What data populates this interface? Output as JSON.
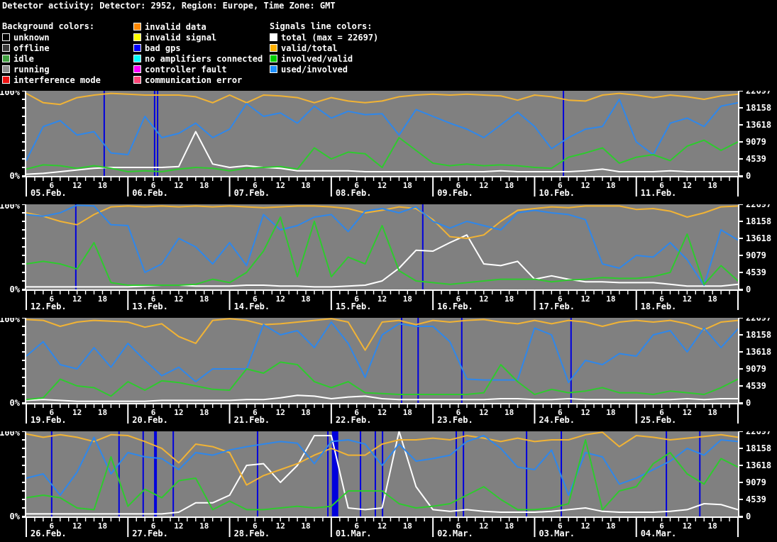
{
  "title": "Detector activity; Detector: 2952, Region: Europe, Time Zone: GMT",
  "legend": {
    "background_title": "Background colors:",
    "signals_title": "Signals line colors:",
    "background_items": [
      {
        "label": "unknown",
        "color": "#000000"
      },
      {
        "label": "offline",
        "color": "#3c3c3c"
      },
      {
        "label": "idle",
        "color": "#40a040"
      },
      {
        "label": "running",
        "color": "#8f8f8f"
      },
      {
        "label": "interference mode",
        "color": "#ee1111"
      }
    ],
    "status_items": [
      {
        "label": "invalid data",
        "color": "#ff8800"
      },
      {
        "label": "invalid signal",
        "color": "#ffff00"
      },
      {
        "label": "bad gps",
        "color": "#0000ff"
      },
      {
        "label": "no amplifiers connected",
        "color": "#00ffff"
      },
      {
        "label": "controller fault",
        "color": "#ff00ff"
      },
      {
        "label": "communication error",
        "color": "#ff4477"
      }
    ],
    "signal_items": [
      {
        "label": "total (max = 22697)",
        "color": "#ffffff"
      },
      {
        "label": "valid/total",
        "color": "#ffb000"
      },
      {
        "label": "involved/valid",
        "color": "#00cc00"
      },
      {
        "label": "used/involved",
        "color": "#1e90ff"
      }
    ]
  },
  "chart_data": {
    "type": "line",
    "y_max_total": 22697,
    "sample_interval_hours": 4,
    "hours_per_panel": 168,
    "y_left_labels": [
      "100%",
      "0%"
    ],
    "y_right_labels": [
      "22697",
      "18158",
      "13618",
      "9079",
      "4539",
      "0"
    ],
    "x_hour_labels": [
      "6",
      "12",
      "18"
    ],
    "series_order": [
      "total",
      "valid_total",
      "used_involved",
      "involved_valid"
    ],
    "colors": {
      "plot_bg": "#808080",
      "axis": "#ffffff",
      "event": "#0000dd",
      "total": "#ffffff",
      "valid_total": "#f1b335",
      "involved_valid": "#2eca2e",
      "used_involved": "#2f87ea"
    },
    "panels": [
      {
        "dates": [
          "05.Feb.",
          "06.Feb.",
          "07.Feb.",
          "08.Feb.",
          "09.Feb.",
          "10.Feb.",
          "11.Feb."
        ],
        "events": [
          [
            18.4,
            2
          ],
          [
            30.3,
            2
          ],
          [
            31.0,
            2
          ],
          [
            126.8,
            2
          ]
        ],
        "series": {
          "valid_total": [
            97,
            86,
            84,
            92,
            95,
            97,
            96,
            95,
            95,
            95,
            93,
            86,
            95,
            86,
            95,
            94,
            92,
            86,
            92,
            88,
            86,
            88,
            93,
            95,
            96,
            95,
            96,
            95,
            94,
            89,
            95,
            93,
            89,
            88,
            95,
            97,
            95,
            92,
            95,
            93,
            90,
            94,
            96
          ],
          "used_involved": [
            18,
            58,
            65,
            48,
            52,
            27,
            25,
            70,
            45,
            50,
            62,
            45,
            55,
            85,
            70,
            74,
            62,
            82,
            68,
            76,
            72,
            73,
            48,
            78,
            70,
            62,
            55,
            45,
            60,
            75,
            58,
            32,
            45,
            55,
            58,
            90,
            40,
            25,
            62,
            68,
            58,
            82,
            86
          ],
          "involved_valid": [
            8,
            13,
            12,
            9,
            12,
            9,
            5,
            6,
            5,
            8,
            10,
            9,
            6,
            9,
            10,
            11,
            8,
            33,
            20,
            28,
            26,
            10,
            45,
            30,
            15,
            12,
            14,
            12,
            13,
            12,
            10,
            9,
            22,
            27,
            33,
            15,
            22,
            25,
            18,
            35,
            42,
            30,
            40
          ],
          "total": [
            2,
            3,
            5,
            7,
            9,
            10,
            10,
            10,
            10,
            11,
            52,
            14,
            10,
            12,
            10,
            9,
            6,
            6,
            6,
            6,
            5,
            5,
            5,
            5,
            5,
            5,
            5,
            5,
            6,
            5,
            5,
            5,
            5,
            6,
            8,
            5,
            5,
            5,
            6,
            5,
            5,
            5,
            5
          ]
        }
      },
      {
        "dates": [
          "12.Feb.",
          "13.Feb.",
          "14.Feb.",
          "15.Feb.",
          "16.Feb.",
          "17.Feb.",
          "18.Feb."
        ],
        "events": [
          [
            11.7,
            2
          ],
          [
            93.6,
            2
          ]
        ],
        "series": {
          "valid_total": [
            90,
            86,
            80,
            76,
            88,
            97,
            98,
            97,
            98,
            97,
            98,
            97,
            98,
            97,
            96,
            97,
            98,
            98,
            97,
            95,
            90,
            93,
            97,
            95,
            82,
            62,
            60,
            64,
            80,
            93,
            95,
            97,
            96,
            98,
            98,
            98,
            94,
            95,
            92,
            85,
            90,
            97,
            98
          ],
          "used_involved": [
            88,
            86,
            90,
            99,
            98,
            76,
            75,
            20,
            30,
            60,
            50,
            30,
            55,
            28,
            88,
            70,
            75,
            85,
            88,
            68,
            92,
            95,
            90,
            97,
            80,
            72,
            80,
            75,
            70,
            90,
            93,
            90,
            88,
            82,
            30,
            25,
            40,
            38,
            55,
            35,
            5,
            70,
            58
          ],
          "involved_valid": [
            30,
            33,
            30,
            24,
            55,
            8,
            5,
            5,
            5,
            5,
            6,
            12,
            8,
            20,
            45,
            85,
            15,
            80,
            15,
            38,
            30,
            75,
            22,
            10,
            8,
            6,
            8,
            10,
            12,
            12,
            12,
            9,
            11,
            12,
            14,
            13,
            13,
            15,
            20,
            65,
            6,
            28,
            10
          ],
          "total": [
            3,
            3,
            3,
            3,
            3,
            3,
            3,
            4,
            5,
            5,
            4,
            4,
            4,
            5,
            5,
            4,
            4,
            3,
            3,
            4,
            5,
            10,
            25,
            46,
            45,
            55,
            64,
            30,
            28,
            33,
            12,
            16,
            12,
            9,
            9,
            8,
            8,
            8,
            6,
            4,
            4,
            4,
            6
          ]
        }
      },
      {
        "dates": [
          "19.Feb.",
          "20.Feb.",
          "21.Feb.",
          "22.Feb.",
          "23.Feb.",
          "24.Feb.",
          "25.Feb."
        ],
        "events": [
          [
            88.6,
            2
          ],
          [
            92.5,
            2
          ],
          [
            102.8,
            2
          ],
          [
            128.6,
            2
          ]
        ],
        "series": {
          "valid_total": [
            98,
            97,
            90,
            95,
            97,
            96,
            95,
            89,
            93,
            78,
            70,
            97,
            99,
            97,
            92,
            93,
            95,
            97,
            99,
            95,
            62,
            95,
            97,
            92,
            97,
            95,
            97,
            98,
            95,
            93,
            97,
            93,
            97,
            95,
            90,
            95,
            97,
            95,
            97,
            93,
            86,
            95,
            97
          ],
          "used_involved": [
            55,
            72,
            45,
            40,
            65,
            42,
            70,
            50,
            32,
            42,
            25,
            40,
            40,
            40,
            92,
            80,
            85,
            65,
            95,
            70,
            30,
            80,
            93,
            90,
            90,
            72,
            28,
            27,
            27,
            27,
            88,
            80,
            24,
            50,
            45,
            58,
            55,
            80,
            85,
            60,
            88,
            65,
            87
          ],
          "involved_valid": [
            4,
            6,
            28,
            20,
            18,
            8,
            25,
            15,
            26,
            24,
            20,
            16,
            15,
            40,
            35,
            48,
            45,
            25,
            18,
            25,
            12,
            11,
            10,
            10,
            10,
            10,
            10,
            12,
            45,
            25,
            10,
            16,
            12,
            14,
            18,
            12,
            12,
            10,
            14,
            12,
            10,
            18,
            28
          ],
          "total": [
            3,
            4,
            3,
            2,
            2,
            2,
            2,
            2,
            3,
            3,
            3,
            3,
            3,
            4,
            4,
            6,
            9,
            8,
            5,
            7,
            8,
            5,
            4,
            4,
            4,
            4,
            4,
            4,
            5,
            5,
            4,
            4,
            5,
            4,
            4,
            4,
            4,
            4,
            4,
            5,
            4,
            5,
            5
          ]
        }
      },
      {
        "dates": [
          "26.Feb.",
          "27.Feb.",
          "28.Feb.",
          "01.Mar.",
          "02.Mar.",
          "03.Mar.",
          "04.Mar."
        ],
        "events": [
          [
            6.0,
            2
          ],
          [
            21.9,
            2
          ],
          [
            27.6,
            2
          ],
          [
            30.5,
            4
          ],
          [
            34.7,
            2
          ],
          [
            54.6,
            2
          ],
          [
            71.2,
            2
          ],
          [
            72.9,
            9
          ],
          [
            78.9,
            2
          ],
          [
            82.4,
            2
          ],
          [
            84.1,
            2
          ],
          [
            101.5,
            2
          ],
          [
            103.2,
            2
          ],
          [
            118.1,
            2
          ],
          [
            126.3,
            2
          ],
          [
            151.1,
            2
          ],
          [
            159.0,
            2
          ]
        ],
        "series": {
          "valid_total": [
            97,
            93,
            96,
            93,
            88,
            96,
            95,
            88,
            80,
            63,
            85,
            82,
            75,
            37,
            48,
            55,
            62,
            72,
            80,
            72,
            72,
            85,
            90,
            90,
            92,
            90,
            95,
            92,
            88,
            92,
            88,
            90,
            90,
            96,
            99,
            82,
            95,
            93,
            90,
            92,
            94,
            96,
            93
          ],
          "used_involved": [
            45,
            50,
            25,
            52,
            93,
            50,
            75,
            70,
            68,
            55,
            75,
            72,
            78,
            82,
            85,
            88,
            86,
            62,
            88,
            90,
            85,
            60,
            85,
            65,
            68,
            72,
            88,
            95,
            80,
            58,
            55,
            78,
            25,
            75,
            70,
            38,
            45,
            55,
            65,
            80,
            72,
            90,
            88
          ],
          "involved_valid": [
            22,
            25,
            22,
            10,
            8,
            70,
            12,
            32,
            22,
            42,
            45,
            8,
            18,
            8,
            8,
            10,
            12,
            10,
            12,
            30,
            30,
            30,
            15,
            10,
            12,
            15,
            25,
            35,
            20,
            8,
            8,
            10,
            15,
            90,
            8,
            30,
            35,
            62,
            75,
            50,
            38,
            68,
            58
          ],
          "total": [
            3,
            3,
            3,
            3,
            3,
            3,
            3,
            3,
            3,
            5,
            16,
            16,
            25,
            60,
            62,
            40,
            60,
            95,
            95,
            10,
            8,
            10,
            100,
            35,
            8,
            6,
            8,
            6,
            5,
            5,
            5,
            6,
            8,
            10,
            6,
            5,
            5,
            5,
            6,
            8,
            15,
            14,
            8
          ]
        }
      }
    ]
  }
}
